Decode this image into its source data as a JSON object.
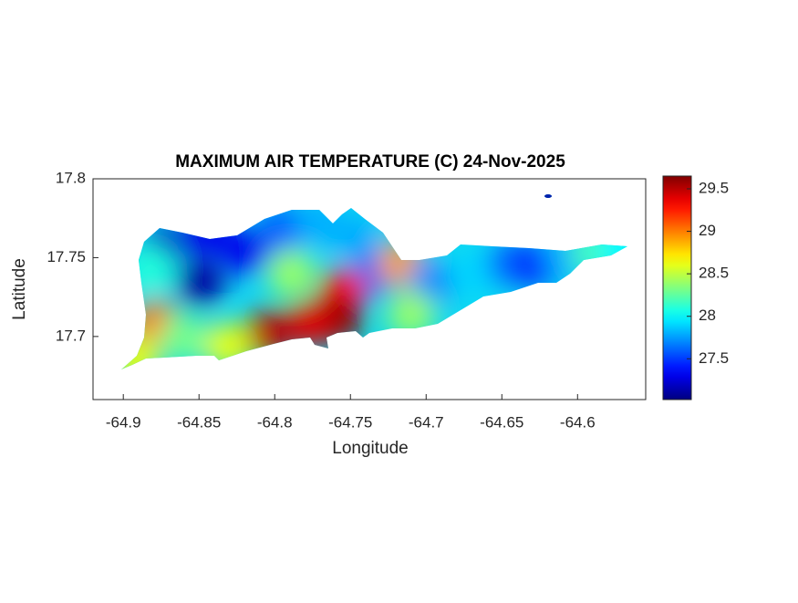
{
  "chart_data": {
    "type": "heatmap",
    "title": "MAXIMUM AIR TEMPERATURE (C) 24-Nov-2025",
    "x_label": "Longitude",
    "y_label": "Latitude",
    "colormap": "jet",
    "x": [
      -64.873,
      -64.849,
      -64.819,
      -64.795,
      -64.771,
      -64.746,
      -64.734,
      -64.755,
      -64.758,
      -64.777,
      -64.804,
      -64.831,
      -64.879,
      -64.892,
      -64.861,
      -64.789,
      -64.716,
      -64.698,
      -64.71,
      -64.668,
      -64.644,
      -64.625,
      -64.607,
      -64.589,
      -64.571,
      -64.619,
      -64.882,
      -64.843
    ],
    "y": [
      17.757,
      17.734,
      17.754,
      17.769,
      17.772,
      17.763,
      17.74,
      17.728,
      17.711,
      17.708,
      17.702,
      17.694,
      17.708,
      17.685,
      17.699,
      17.74,
      17.746,
      17.734,
      17.714,
      17.74,
      17.746,
      17.746,
      17.751,
      17.754,
      17.756,
      17.789,
      17.743,
      17.766
    ],
    "values": [
      27.2,
      27.1,
      27.3,
      27.6,
      27.8,
      27.8,
      27.6,
      29.3,
      29.6,
      29.4,
      29.5,
      28.6,
      29.0,
      28.6,
      28.3,
      28.4,
      28.9,
      27.7,
      28.4,
      27.9,
      27.6,
      27.4,
      27.8,
      28.2,
      28.0,
      27.1,
      28.1,
      27.3
    ],
    "xlim": [
      -64.92,
      -64.555
    ],
    "xticks": [
      -64.9,
      -64.85,
      -64.8,
      -64.75,
      -64.7,
      -64.65,
      -64.6
    ],
    "ylim": [
      17.66,
      17.8
    ],
    "yticks": [
      17.7,
      17.75,
      17.8
    ],
    "clim": [
      27.02,
      29.65
    ],
    "cticks": [
      27.5,
      28,
      28.5,
      29,
      29.5
    ]
  }
}
